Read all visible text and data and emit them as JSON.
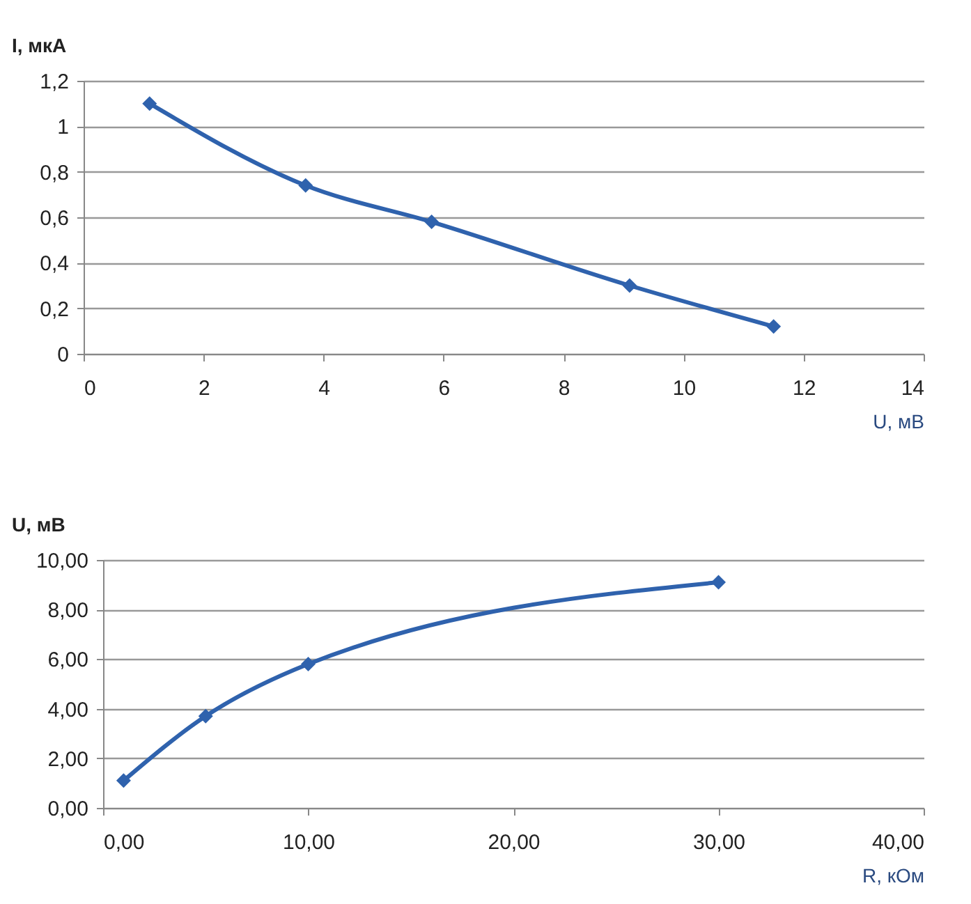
{
  "chart_data": [
    {
      "type": "line",
      "ylabel": "I, мкА",
      "xlabel": "U, мВ",
      "x": [
        1.1,
        3.7,
        5.8,
        9.1,
        11.5
      ],
      "series": [
        {
          "color": "#2f62ad",
          "values": [
            1.1,
            0.74,
            0.58,
            0.3,
            0.12
          ]
        }
      ],
      "xlim": [
        0,
        14
      ],
      "xticks": [
        0,
        2,
        4,
        6,
        8,
        10,
        12,
        14
      ],
      "ylim": [
        0,
        1.2
      ],
      "yticks": [
        0,
        {
          "value": 0.2,
          "label": "0,2"
        },
        {
          "value": 0.4,
          "label": "0,4"
        },
        {
          "value": 0.6,
          "label": "0,6"
        },
        {
          "value": 0.8,
          "label": "0,8"
        },
        1,
        {
          "value": 1.2,
          "label": "1,2"
        }
      ],
      "grid": "y",
      "marker": "diamond",
      "line_style": "solid"
    },
    {
      "type": "line",
      "ylabel": "U, мВ",
      "xlabel": "R, кОм",
      "x": [
        1,
        5,
        10,
        30
      ],
      "series": [
        {
          "color": "#2f62ad",
          "values": [
            1.1,
            3.7,
            5.8,
            9.1
          ]
        }
      ],
      "xlim": [
        0,
        40
      ],
      "xticks": [
        {
          "value": 0,
          "label": "0,00"
        },
        {
          "value": 10,
          "label": "10,00"
        },
        {
          "value": 20,
          "label": "20,00"
        },
        {
          "value": 30,
          "label": "30,00"
        },
        {
          "value": 40,
          "label": "40,00"
        }
      ],
      "ylim": [
        0,
        10
      ],
      "yticks": [
        {
          "value": 0,
          "label": "0,00"
        },
        {
          "value": 2,
          "label": "2,00"
        },
        {
          "value": 4,
          "label": "4,00"
        },
        {
          "value": 6,
          "label": "6,00"
        },
        {
          "value": 8,
          "label": "8,00"
        },
        {
          "value": 10,
          "label": "10,00"
        }
      ],
      "grid": "y",
      "marker": "diamond",
      "line_style": "solid"
    }
  ]
}
